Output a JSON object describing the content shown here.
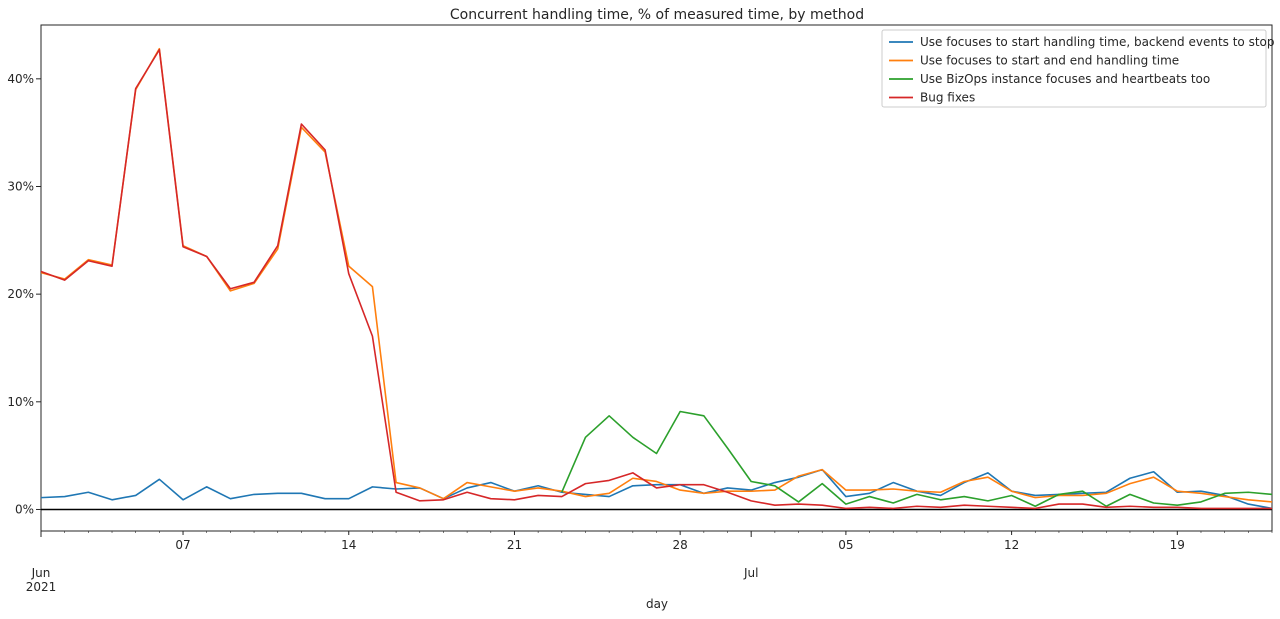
{
  "chart_data": {
    "type": "line",
    "title": "Concurrent handling time, % of measured time, by method",
    "xlabel": "day",
    "ylabel": "",
    "x_start": "2021-06-01",
    "x_end": "2021-07-23",
    "ylim": [
      -2,
      45
    ],
    "yticks": [
      0,
      10,
      20,
      30,
      40
    ],
    "ytick_labels": [
      "0%",
      "10%",
      "20%",
      "30%",
      "40%"
    ],
    "xticks": [
      {
        "date": "2021-06-01",
        "label": "Jun",
        "sublabel": "2021"
      },
      {
        "date": "2021-06-07",
        "label": "07"
      },
      {
        "date": "2021-06-14",
        "label": "14"
      },
      {
        "date": "2021-06-21",
        "label": "21"
      },
      {
        "date": "2021-06-28",
        "label": "28"
      },
      {
        "date": "2021-07-01",
        "label": "Jul"
      },
      {
        "date": "2021-07-05",
        "label": "05"
      },
      {
        "date": "2021-07-12",
        "label": "12"
      },
      {
        "date": "2021-07-19",
        "label": "19"
      }
    ],
    "legend_position": "top-right",
    "grid": false,
    "zero_line": true,
    "series": [
      {
        "name": "Use focuses to start handling time, backend events to stop",
        "color": "#1f77b4",
        "values": [
          1.1,
          1.2,
          1.6,
          0.9,
          1.3,
          2.8,
          0.9,
          2.1,
          1.0,
          1.4,
          1.5,
          1.5,
          1.0,
          1.0,
          2.1,
          1.9,
          2.0,
          1.0,
          2.0,
          2.5,
          1.7,
          2.2,
          1.6,
          1.4,
          1.2,
          2.2,
          2.3,
          2.3,
          1.5,
          2.0,
          1.8,
          2.5,
          3.0,
          3.7,
          1.2,
          1.5,
          2.5,
          1.7,
          1.3,
          2.5,
          3.4,
          1.7,
          1.3,
          1.4,
          1.5,
          1.6,
          2.9,
          3.5,
          1.6,
          1.7,
          1.3,
          0.5,
          0.1
        ]
      },
      {
        "name": "Use focuses to start and end handling time",
        "color": "#ff7f0e",
        "values": [
          22.0,
          21.4,
          23.2,
          22.7,
          39.0,
          42.8,
          24.5,
          23.5,
          20.3,
          21.0,
          24.2,
          35.5,
          33.2,
          22.6,
          20.7,
          2.5,
          2.0,
          1.0,
          2.5,
          2.1,
          1.7,
          2.0,
          1.7,
          1.2,
          1.5,
          2.9,
          2.6,
          1.8,
          1.5,
          1.7,
          1.7,
          1.8,
          3.1,
          3.7,
          1.8,
          1.8,
          1.9,
          1.7,
          1.6,
          2.6,
          3.0,
          1.7,
          1.1,
          1.3,
          1.3,
          1.5,
          2.4,
          3.0,
          1.7,
          1.5,
          1.2,
          0.9,
          0.7
        ]
      },
      {
        "name": "Use BizOps instance focuses and heartbeats too",
        "color": "#2ca02c",
        "values": [
          null,
          null,
          null,
          null,
          null,
          null,
          null,
          null,
          null,
          null,
          null,
          null,
          null,
          null,
          null,
          null,
          null,
          null,
          null,
          null,
          null,
          null,
          1.6,
          6.7,
          8.7,
          6.7,
          5.2,
          9.1,
          8.7,
          5.7,
          2.6,
          2.2,
          0.7,
          2.4,
          0.5,
          1.2,
          0.6,
          1.4,
          0.9,
          1.2,
          0.8,
          1.3,
          0.3,
          1.4,
          1.7,
          0.3,
          1.4,
          0.6,
          0.4,
          0.7,
          1.5,
          1.6,
          1.4
        ]
      },
      {
        "name": "Bug fixes",
        "color": "#d62728",
        "values": [
          22.1,
          21.3,
          23.1,
          22.6,
          39.1,
          42.7,
          24.4,
          23.5,
          20.5,
          21.1,
          24.5,
          35.8,
          33.4,
          21.9,
          16.1,
          1.6,
          0.8,
          0.9,
          1.6,
          1.0,
          0.9,
          1.3,
          1.2,
          2.4,
          2.7,
          3.4,
          2.0,
          2.3,
          2.3,
          1.6,
          0.8,
          0.4,
          0.5,
          0.4,
          0.1,
          0.2,
          0.1,
          0.3,
          0.2,
          0.4,
          0.3,
          0.2,
          0.1,
          0.5,
          0.5,
          0.2,
          0.3,
          0.2,
          0.2,
          0.1,
          0.1,
          0.1,
          0.1
        ]
      }
    ]
  }
}
